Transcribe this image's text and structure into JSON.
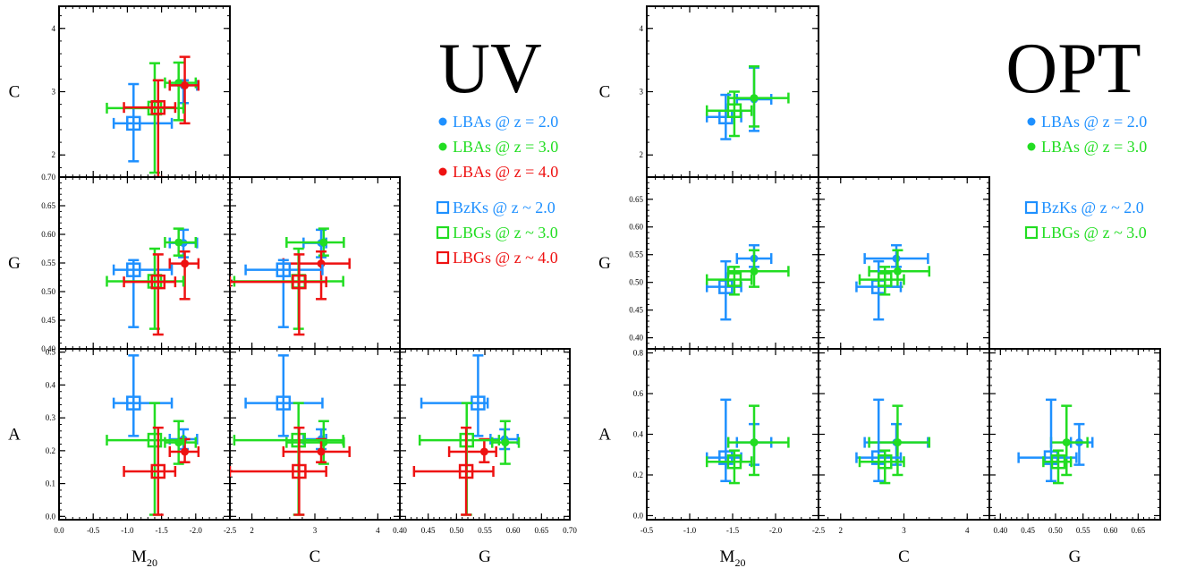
{
  "chart_data": [
    {
      "panel": "UV",
      "type": "scatter",
      "title": "UV",
      "axes": {
        "M20": {
          "label": "M",
          "label_sub": "20",
          "range": [
            0.0,
            -2.5
          ],
          "ticks": [
            "0.0",
            "-0.5",
            "-1.0",
            "-1.5",
            "-2.0",
            "-2.5"
          ],
          "tick_values": [
            0.0,
            -0.5,
            -1.0,
            -1.5,
            -2.0,
            -2.5
          ]
        },
        "C": {
          "label": "C",
          "range": [
            1.65,
            4.35
          ],
          "ticks": [
            "2",
            "3",
            "4"
          ],
          "tick_values": [
            2,
            3,
            4
          ]
        },
        "G": {
          "label": "G",
          "range": [
            0.4,
            0.7
          ],
          "ticks": [
            "0.40",
            "0.45",
            "0.50",
            "0.55",
            "0.60",
            "0.65",
            "0.70"
          ],
          "tick_values": [
            0.4,
            0.45,
            0.5,
            0.55,
            0.6,
            0.65,
            0.7
          ]
        },
        "A": {
          "label": "A",
          "range": [
            -0.01,
            0.51
          ],
          "ticks": [
            "0.0",
            "0.1",
            "0.2",
            "0.3",
            "0.4",
            "0.5"
          ],
          "tick_values": [
            0.0,
            0.1,
            0.2,
            0.3,
            0.4,
            0.5
          ]
        }
      },
      "y_tick_overrides": {
        "C": {
          "ticks": [
            "2",
            "3",
            "4"
          ],
          "tick_values": [
            2,
            3,
            4
          ]
        },
        "G": {
          "ticks": [
            "0.40",
            "0.45",
            "0.50",
            "0.55",
            "0.60",
            "0.65",
            "0.70"
          ],
          "tick_values": [
            0.4,
            0.45,
            0.5,
            0.55,
            0.6,
            0.65,
            0.7
          ]
        },
        "A": {
          "ticks": [
            "0.0",
            "0.1",
            "0.2",
            "0.3",
            "0.4",
            "0.5"
          ],
          "tick_values": [
            0.0,
            0.1,
            0.2,
            0.3,
            0.4,
            0.5
          ]
        }
      },
      "series": [
        {
          "name": "LBAs @ z = 2.0",
          "marker": "circle",
          "color": "#1E90FF",
          "M20": [
            -1.82,
            -1.62,
            -2.02
          ],
          "C": [
            3.1,
            2.82,
            3.18
          ],
          "G": [
            0.585,
            0.56,
            0.608
          ],
          "A": [
            0.235,
            0.205,
            0.265
          ]
        },
        {
          "name": "LBAs @ z = 3.0",
          "marker": "circle",
          "color": "#22DD22",
          "M20": [
            -1.75,
            -1.55,
            -2.0
          ],
          "C": [
            3.14,
            2.55,
            3.46
          ],
          "G": [
            0.586,
            0.563,
            0.61
          ],
          "A": [
            0.225,
            0.16,
            0.29
          ]
        },
        {
          "name": "LBAs @ z = 4.0",
          "marker": "circle",
          "color": "#EE1111",
          "M20": [
            -1.84,
            -1.62,
            -2.04
          ],
          "C": [
            3.1,
            2.5,
            3.55
          ],
          "G": [
            0.549,
            0.487,
            0.57
          ],
          "A": [
            0.197,
            0.165,
            0.235
          ]
        },
        {
          "name": "BzKs @ z ~ 2.0",
          "marker": "square",
          "color": "#1E90FF",
          "M20": [
            -1.09,
            -0.8,
            -1.65
          ],
          "C": [
            2.5,
            1.9,
            3.12
          ],
          "G": [
            0.538,
            0.438,
            0.555
          ],
          "A": [
            0.345,
            0.245,
            0.49
          ]
        },
        {
          "name": "LBGs @ z ~ 3.0",
          "marker": "square",
          "color": "#22DD22",
          "M20": [
            -1.4,
            -0.7,
            -1.82
          ],
          "C": [
            2.74,
            1.72,
            3.45
          ],
          "G": [
            0.518,
            0.435,
            0.575
          ],
          "A": [
            0.232,
            0.005,
            0.345
          ]
        },
        {
          "name": "LBGs @ z ~ 4.0",
          "marker": "square",
          "color": "#EE1111",
          "M20": [
            -1.45,
            -0.95,
            -1.7
          ],
          "C": [
            2.75,
            1.65,
            3.18
          ],
          "G": [
            0.517,
            0.425,
            0.565
          ],
          "A": [
            0.137,
            0.005,
            0.27
          ]
        }
      ],
      "legend": [
        {
          "text": "LBAs @ z = 2.0",
          "marker": "circle",
          "color": "#1E90FF"
        },
        {
          "text": "LBAs @ z = 3.0",
          "marker": "circle",
          "color": "#22DD22"
        },
        {
          "text": "LBAs @ z = 4.0",
          "marker": "circle",
          "color": "#EE1111"
        },
        {
          "text": "BzKs @ z ~ 2.0",
          "marker": "square",
          "color": "#1E90FF"
        },
        {
          "text": "LBGs @ z ~ 3.0",
          "marker": "square",
          "color": "#22DD22"
        },
        {
          "text": "LBGs @ z ~ 4.0",
          "marker": "square",
          "color": "#EE1111"
        }
      ]
    },
    {
      "panel": "OPT",
      "type": "scatter",
      "title": "OPT",
      "axes": {
        "M20": {
          "label": "M",
          "label_sub": "20",
          "range": [
            -0.5,
            -2.5
          ],
          "ticks": [
            "-0.5",
            "-1.0",
            "-1.5",
            "-2.0",
            "-2.5"
          ],
          "tick_values": [
            -0.5,
            -1.0,
            -1.5,
            -2.0,
            -2.5
          ]
        },
        "C": {
          "label": "C",
          "range": [
            1.65,
            4.35
          ],
          "ticks": [
            "2",
            "3",
            "4"
          ],
          "tick_values": [
            2,
            3,
            4
          ]
        },
        "G": {
          "label": "G",
          "range": [
            0.38,
            0.69
          ],
          "ticks": [
            "0.40",
            "0.45",
            "0.50",
            "0.55",
            "0.60",
            "0.65"
          ],
          "tick_values": [
            0.4,
            0.45,
            0.5,
            0.55,
            0.6,
            0.65
          ]
        },
        "A": {
          "label": "A",
          "range": [
            -0.02,
            0.82
          ],
          "ticks": [
            "0.0",
            "0.2",
            "0.4",
            "0.6",
            "0.8"
          ],
          "tick_values": [
            0.0,
            0.2,
            0.4,
            0.6,
            0.8
          ]
        }
      },
      "y_tick_overrides": {
        "C": {
          "ticks": [
            "2",
            "3",
            "4"
          ],
          "tick_values": [
            2,
            3,
            4
          ]
        },
        "G": {
          "ticks": [
            "0.40",
            "0.45",
            "0.50",
            "0.55",
            "0.60",
            "0.65"
          ],
          "tick_values": [
            0.4,
            0.45,
            0.5,
            0.55,
            0.6,
            0.65
          ]
        },
        "A": {
          "ticks": [
            "0.0",
            "0.2",
            "0.4",
            "0.6",
            "0.8"
          ],
          "tick_values": [
            0.0,
            0.2,
            0.4,
            0.6,
            0.8
          ]
        }
      },
      "series": [
        {
          "name": "LBAs @ z = 2.0",
          "marker": "circle",
          "color": "#1E90FF",
          "M20": [
            -1.75,
            -1.55,
            -1.95
          ],
          "C": [
            2.88,
            2.38,
            3.38
          ],
          "G": [
            0.543,
            0.528,
            0.567
          ],
          "A": [
            0.36,
            0.25,
            0.45
          ]
        },
        {
          "name": "LBAs @ z = 3.0",
          "marker": "circle",
          "color": "#22DD22",
          "M20": [
            -1.75,
            -1.45,
            -2.15
          ],
          "C": [
            2.9,
            2.45,
            3.4
          ],
          "G": [
            0.52,
            0.492,
            0.558
          ],
          "A": [
            0.36,
            0.2,
            0.54
          ]
        },
        {
          "name": "BzKs @ z ~ 2.0",
          "marker": "square",
          "color": "#1E90FF",
          "M20": [
            -1.42,
            -1.2,
            -1.6
          ],
          "C": [
            2.6,
            2.25,
            2.95
          ],
          "G": [
            0.492,
            0.433,
            0.538
          ],
          "A": [
            0.285,
            0.17,
            0.57
          ]
        },
        {
          "name": "LBGs @ z ~ 3.0",
          "marker": "square",
          "color": "#22DD22",
          "M20": [
            -1.52,
            -1.2,
            -1.72
          ],
          "C": [
            2.7,
            2.3,
            3.0
          ],
          "G": [
            0.505,
            0.478,
            0.528
          ],
          "A": [
            0.265,
            0.16,
            0.32
          ]
        }
      ],
      "legend": [
        {
          "text": "LBAs @ z = 2.0",
          "marker": "circle",
          "color": "#1E90FF"
        },
        {
          "text": "LBAs @ z = 3.0",
          "marker": "circle",
          "color": "#22DD22"
        },
        {
          "text": "BzKs @ z ~ 2.0",
          "marker": "square",
          "color": "#1E90FF"
        },
        {
          "text": "LBGs @ z ~ 3.0",
          "marker": "square",
          "color": "#22DD22"
        }
      ]
    }
  ]
}
